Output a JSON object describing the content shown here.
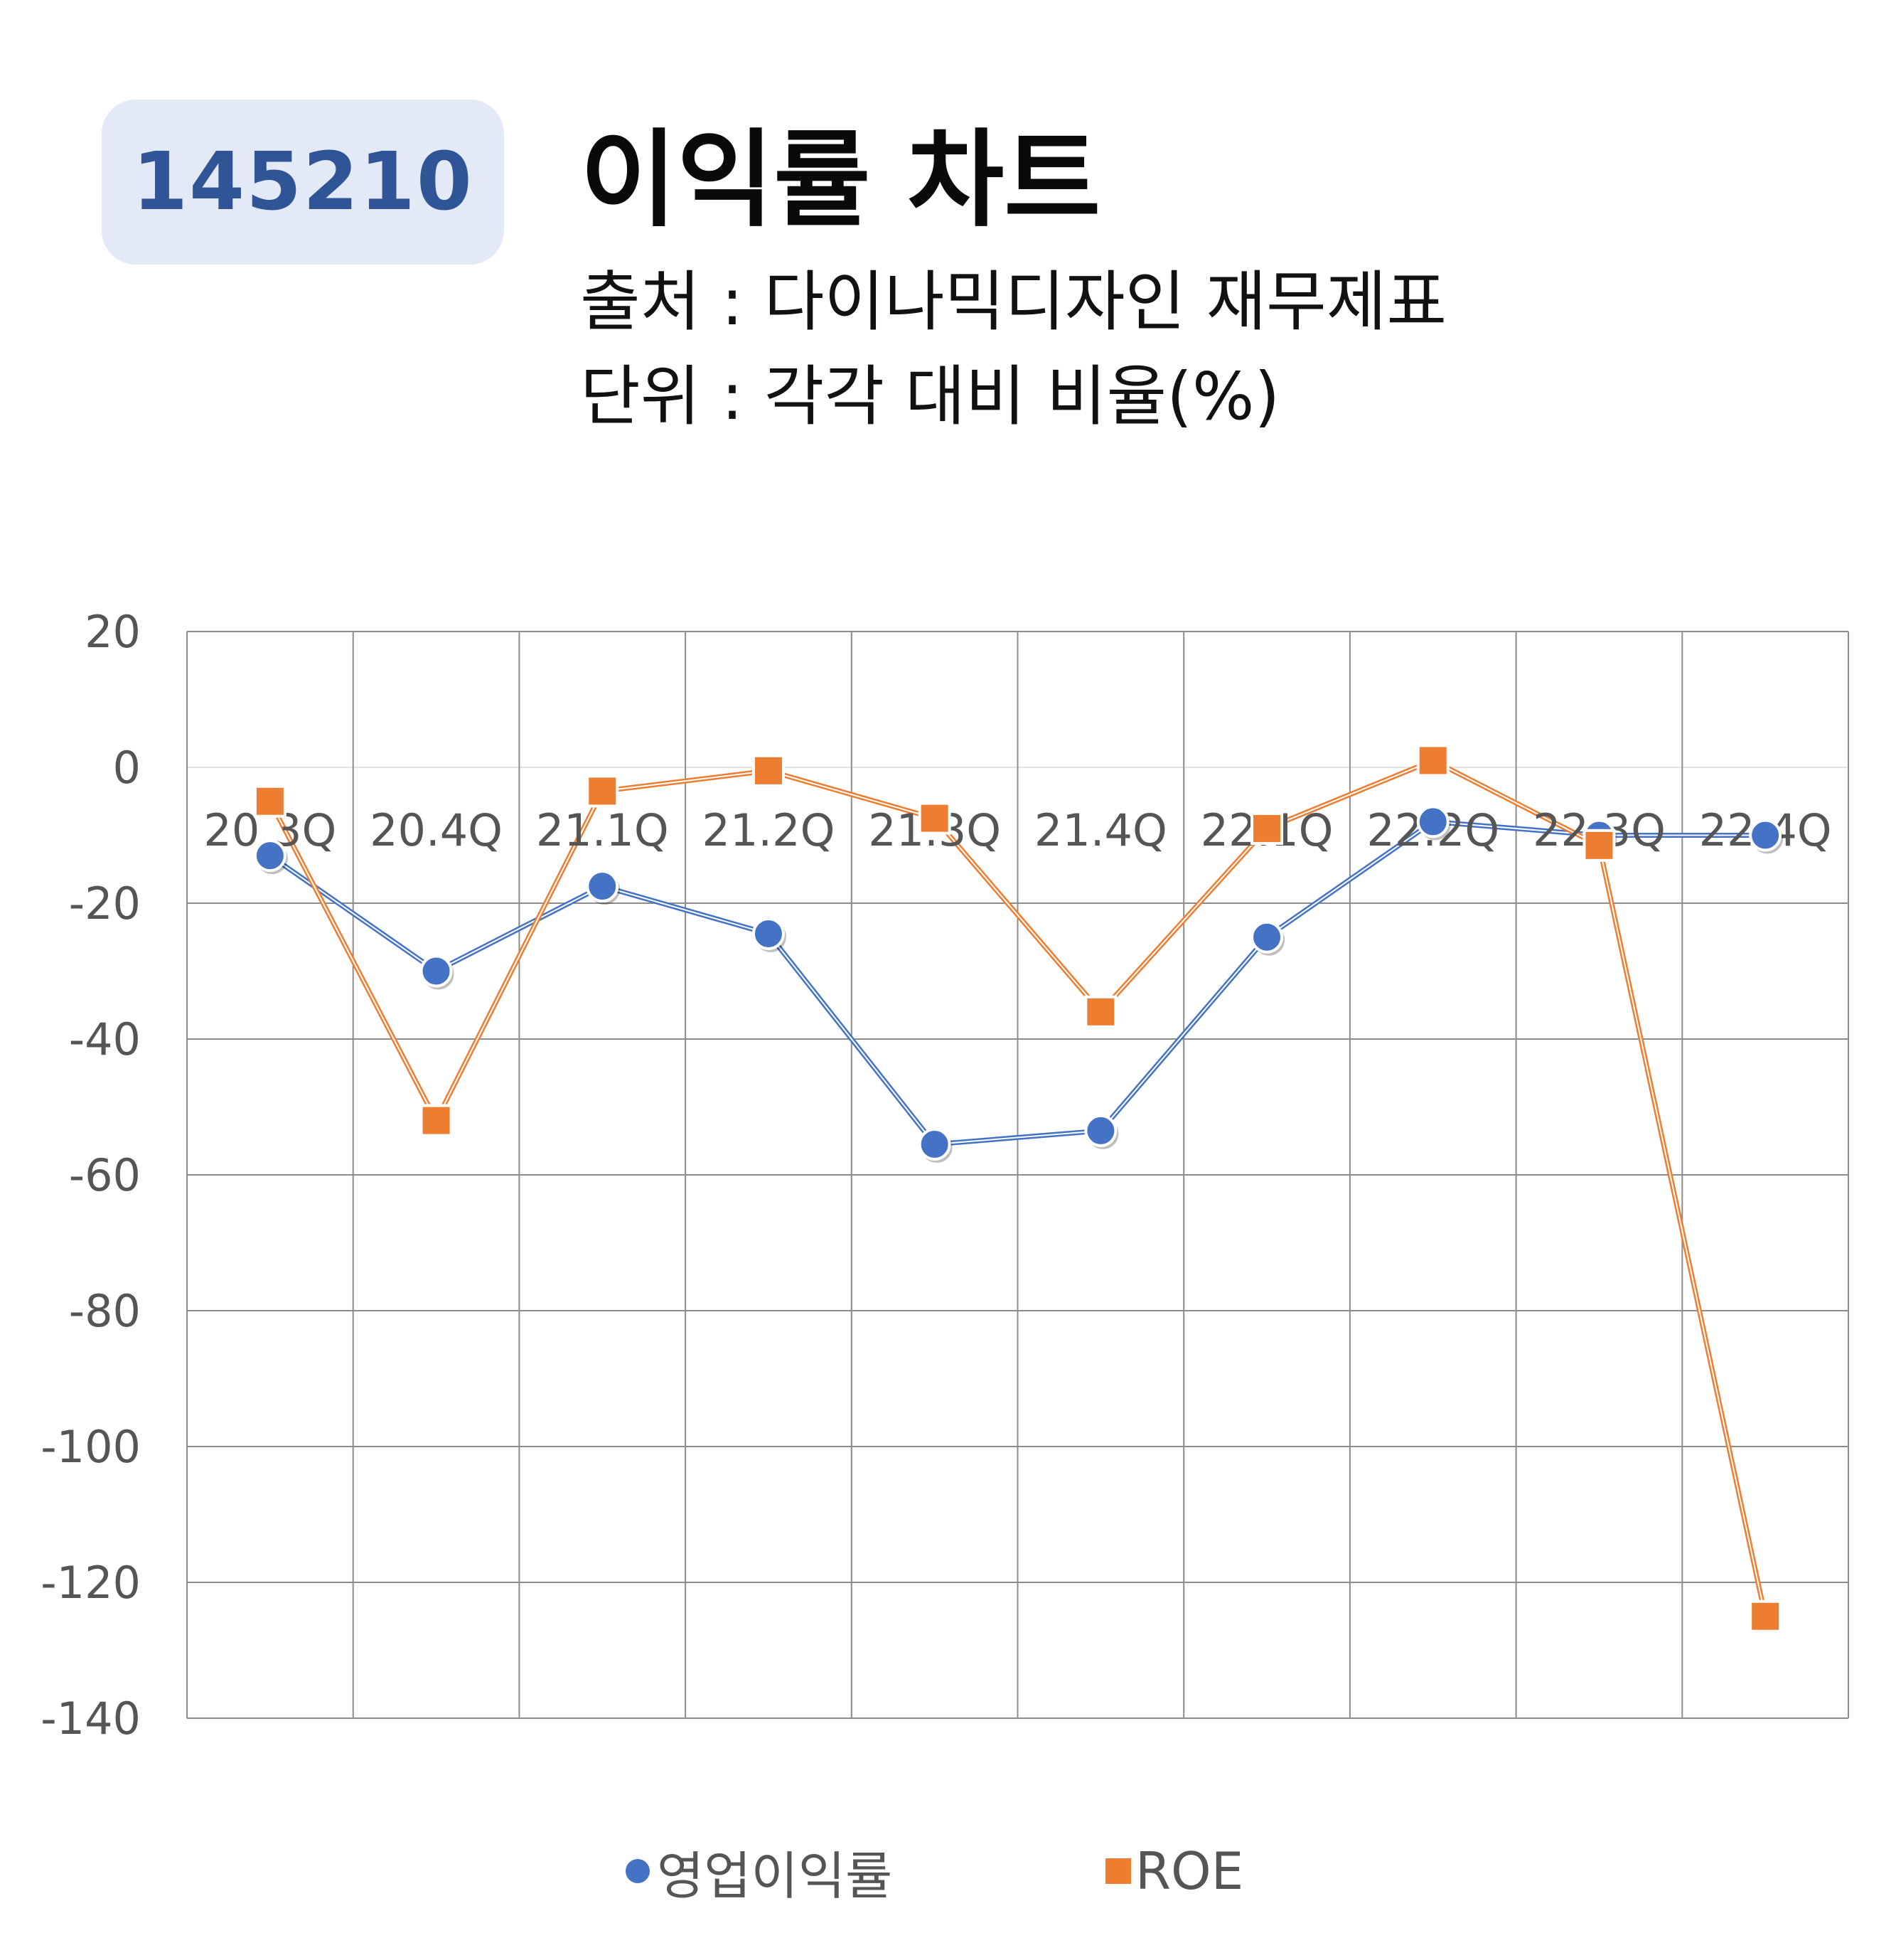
{
  "header": {
    "code": "145210",
    "title": "이익률 차트",
    "source": "출처 : 다이나믹디자인 재무제표",
    "unit": "단위 : 각각 대비 비율(%)"
  },
  "chart_data": {
    "type": "line",
    "title": "이익률 차트",
    "categories": [
      "20.3Q",
      "20.4Q",
      "21.1Q",
      "21.2Q",
      "21.3Q",
      "21.4Q",
      "22.1Q",
      "22.2Q",
      "22.3Q",
      "22.4Q"
    ],
    "series": [
      {
        "name": "영업이익률",
        "color": "#4472c4",
        "marker": "circle",
        "values": [
          -13,
          -30,
          -17.5,
          -24.5,
          -55.5,
          -53.5,
          -25,
          -8,
          -10,
          -10
        ]
      },
      {
        "name": "ROE",
        "color": "#ed7d31",
        "marker": "square",
        "values": [
          -5,
          -52,
          -3.5,
          -0.5,
          -7.5,
          -36,
          -9,
          1,
          -11.5,
          -125
        ]
      }
    ],
    "ylim": [
      -140,
      20
    ],
    "yticks": [
      "20",
      "0",
      "-20",
      "-40",
      "-60",
      "-80",
      "-100",
      "-120",
      "-140"
    ],
    "ytick_values": [
      20,
      0,
      -20,
      -40,
      -60,
      -80,
      -100,
      -120,
      -140
    ],
    "grid": true,
    "legend_position": "bottom",
    "category_labels_position": "at zero line"
  }
}
